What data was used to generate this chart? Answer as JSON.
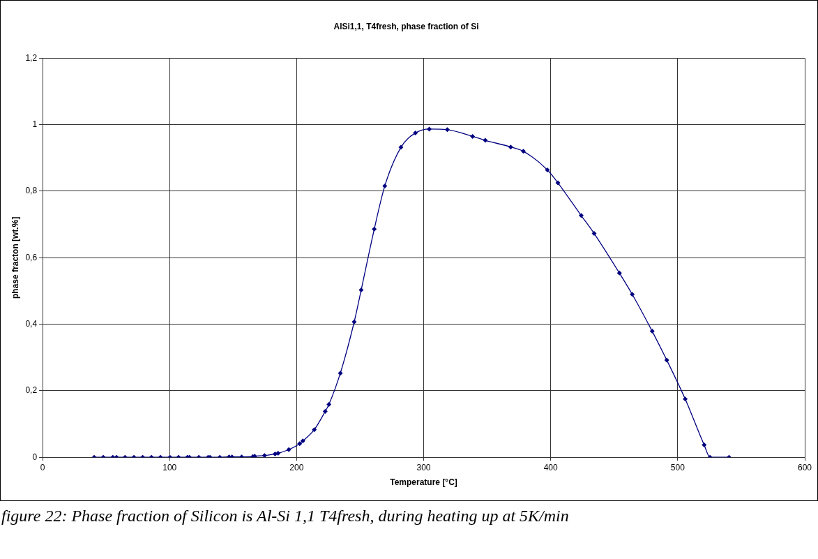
{
  "chart_data": {
    "type": "line",
    "title": "AlSi1,1, T4fresh, phase fraction of Si",
    "xlabel": "Temperature [°C]",
    "ylabel": "phase fracton [wt.%]",
    "annotations": [
      "figure 22: Phase fraction of Silicon is Al-Si 1,1 T4fresh, during heating up at 5K/min"
    ],
    "x": [
      40.6,
      47.8,
      55.3,
      58.2,
      64.9,
      71.9,
      78.8,
      85.7,
      92.8,
      100.3,
      107,
      114,
      115.6,
      123,
      130.3,
      131.8,
      139.5,
      146.8,
      149.1,
      156.7,
      165.5,
      167,
      174.7,
      183,
      185.4,
      193.8,
      202.4,
      204.9,
      213.9,
      222.5,
      225.4,
      234.4,
      245.3,
      250.8,
      261.1,
      269.4,
      282.1,
      293.5,
      304.4,
      318.6,
      338.5,
      348.5,
      368.5,
      378.5,
      397.4,
      405.7,
      424,
      434.2,
      454.1,
      464.2,
      479.9,
      491.4,
      505.9,
      520.8,
      525.4,
      540.4
    ],
    "series": [
      {
        "color": "#000080",
        "values": [
          0,
          0,
          0,
          0,
          0,
          0,
          0,
          0,
          0,
          0,
          0,
          0,
          0,
          0,
          0,
          0,
          0,
          0.001,
          0.001,
          0.001,
          0.002,
          0.003,
          0.005,
          0.01,
          0.012,
          0.023,
          0.041,
          0.049,
          0.083,
          0.138,
          0.159,
          0.253,
          0.407,
          0.503,
          0.686,
          0.816,
          0.932,
          0.975,
          0.987,
          0.985,
          0.965,
          0.953,
          0.933,
          0.92,
          0.864,
          0.825,
          0.727,
          0.673,
          0.554,
          0.49,
          0.379,
          0.292,
          0.175,
          0.037,
          0,
          0
        ]
      }
    ],
    "xlim": [
      0,
      600
    ],
    "xticks": [
      0,
      100,
      200,
      300,
      400,
      500,
      600
    ],
    "ylim": [
      0,
      1.2
    ],
    "yticks": [
      0,
      {
        "value": 0.2,
        "label": "0,2"
      },
      {
        "value": 0.4,
        "label": "0,4"
      },
      {
        "value": 0.6,
        "label": "0,6"
      },
      {
        "value": 0.8,
        "label": "0,8"
      },
      1,
      {
        "value": 1.2,
        "label": "1,2"
      }
    ],
    "grid": true,
    "legend": false,
    "marker": "diamond",
    "line_style": "solid"
  }
}
